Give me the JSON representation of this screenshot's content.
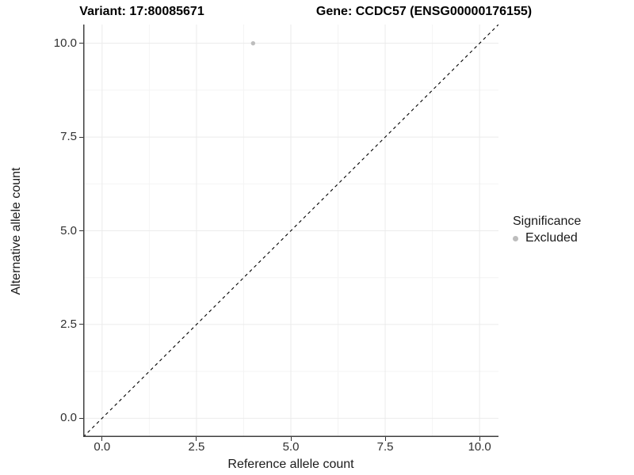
{
  "figure": {
    "background": "#ffffff"
  },
  "chart_data": {
    "type": "scatter",
    "titles": {
      "left": "Variant: 17:80085671",
      "right": "Gene: CCDC57 (ENSG00000176155)"
    },
    "xlabel": "Reference allele count",
    "ylabel": "Alternative allele count",
    "xlim": [
      -0.5,
      10.5
    ],
    "ylim": [
      -0.5,
      10.5
    ],
    "x_ticks": [
      {
        "value": 0,
        "label": "0.0"
      },
      {
        "value": 2.5,
        "label": "2.5"
      },
      {
        "value": 5,
        "label": "5.0"
      },
      {
        "value": 7.5,
        "label": "7.5"
      },
      {
        "value": 10,
        "label": "10.0"
      }
    ],
    "y_ticks": [
      {
        "value": 0,
        "label": "0.0"
      },
      {
        "value": 2.5,
        "label": "2.5"
      },
      {
        "value": 5,
        "label": "5.0"
      },
      {
        "value": 7.5,
        "label": "7.5"
      },
      {
        "value": 10,
        "label": "10.0"
      }
    ],
    "x_minor_ticks": [
      1.25,
      3.75,
      6.25,
      8.75
    ],
    "y_minor_ticks": [
      1.25,
      3.75,
      6.25,
      8.75
    ],
    "grid": {
      "major": true,
      "minor": true
    },
    "reference_line": {
      "type": "identity",
      "slope": 1,
      "intercept": 0,
      "linetype": "dashed",
      "color": "#000000"
    },
    "series": [
      {
        "name": "Excluded",
        "color": "#bdbdbd",
        "point_radius": 2.7,
        "points": [
          {
            "x": 4.0,
            "y": 10.0
          }
        ]
      }
    ],
    "legend": {
      "title": "Significance",
      "position": "right",
      "items": [
        {
          "label": "Excluded",
          "color": "#bdbdbd"
        }
      ]
    },
    "colors": {
      "axis_line": "#404040",
      "tick_mark": "#333333",
      "tick_label": "#303030",
      "grid_major": "#ebebeb",
      "grid_minor": "#f4f4f4",
      "title": "#000000"
    }
  }
}
